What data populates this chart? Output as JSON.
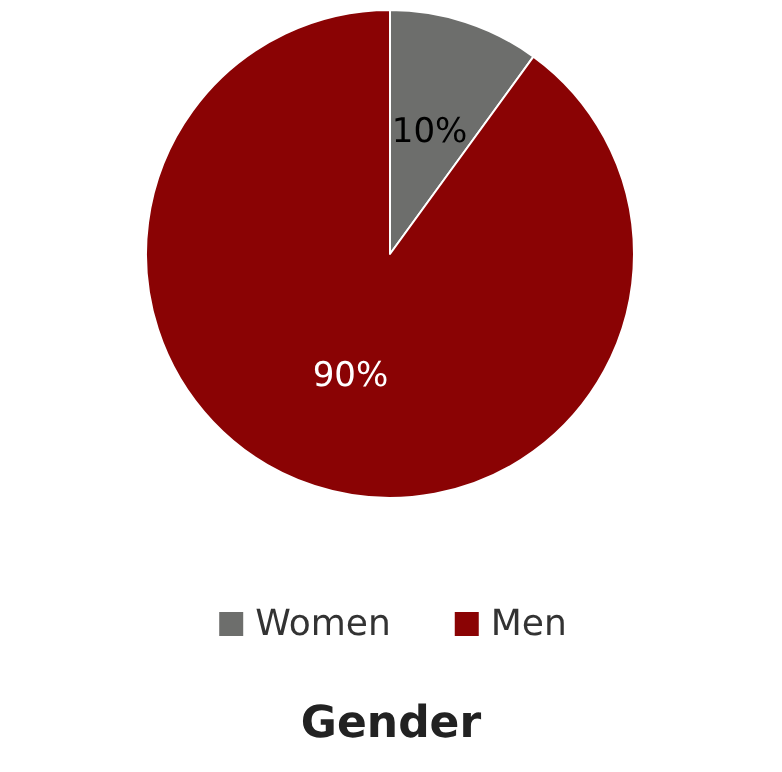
{
  "chart_data": {
    "type": "pie",
    "title": "Gender",
    "categories": [
      "Women",
      "Men"
    ],
    "values": [
      10,
      90
    ],
    "colors": [
      "#6d6e6c",
      "#8a0304"
    ],
    "value_labels": [
      "10%",
      "90%"
    ],
    "legend": "bottom"
  }
}
